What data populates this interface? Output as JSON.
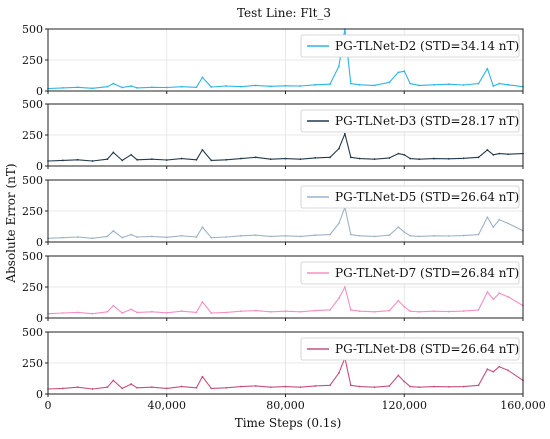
{
  "figure": {
    "title": "Test Line: Flt_3",
    "ylabel": "Absolute Error (nT)",
    "xlabel": "Time Steps (0.1s)"
  },
  "chart_data": {
    "type": "line",
    "title": "Test Line: Flt_3",
    "xlabel": "Time Steps (0.1s)",
    "ylabel": "Absolute Error (nT)",
    "xlim": [
      0,
      160000
    ],
    "ylim": [
      0,
      500
    ],
    "x_ticks": [
      0,
      40000,
      80000,
      120000,
      160000
    ],
    "x_tick_labels": [
      "0",
      "40,000",
      "80,000",
      "120,000",
      "160,000"
    ],
    "y_ticks": [
      0,
      250,
      500
    ],
    "y_tick_labels": [
      "0",
      "250",
      "500"
    ],
    "grid": true,
    "legend_position": "upper-right",
    "panels": [
      {
        "name": "PG-TLNet-D2 (STD=34.14 nT)",
        "color": "#2bb5e8",
        "x": [
          0,
          5000,
          10000,
          15000,
          20000,
          22000,
          25000,
          28000,
          30000,
          35000,
          40000,
          45000,
          50000,
          52000,
          55000,
          60000,
          65000,
          70000,
          75000,
          80000,
          85000,
          90000,
          95000,
          98000,
          100000,
          102000,
          105000,
          110000,
          115000,
          118000,
          120000,
          122000,
          125000,
          130000,
          135000,
          140000,
          145000,
          148000,
          150000,
          152000,
          155000,
          160000
        ],
        "values": [
          20,
          25,
          30,
          22,
          35,
          60,
          28,
          40,
          25,
          30,
          28,
          35,
          30,
          110,
          32,
          40,
          35,
          45,
          38,
          42,
          40,
          50,
          55,
          200,
          520,
          60,
          50,
          45,
          70,
          150,
          160,
          60,
          45,
          50,
          55,
          48,
          60,
          180,
          40,
          60,
          50,
          35
        ]
      },
      {
        "name": "PG-TLNet-D3 (STD=28.17 nT)",
        "color": "#233a4d",
        "x": [
          0,
          5000,
          10000,
          15000,
          20000,
          22000,
          25000,
          28000,
          30000,
          35000,
          40000,
          45000,
          50000,
          52000,
          55000,
          60000,
          65000,
          70000,
          75000,
          80000,
          85000,
          90000,
          95000,
          98000,
          100000,
          102000,
          105000,
          110000,
          115000,
          118000,
          120000,
          122000,
          125000,
          130000,
          135000,
          140000,
          145000,
          148000,
          150000,
          152000,
          155000,
          160000
        ],
        "values": [
          40,
          45,
          50,
          40,
          55,
          110,
          45,
          90,
          50,
          55,
          48,
          60,
          50,
          130,
          45,
          50,
          60,
          70,
          55,
          60,
          55,
          65,
          70,
          140,
          260,
          70,
          60,
          55,
          65,
          100,
          90,
          60,
          55,
          60,
          58,
          62,
          70,
          130,
          90,
          100,
          95,
          100
        ]
      },
      {
        "name": "PG-TLNet-D5 (STD=26.64 nT)",
        "color": "#9fb3c6",
        "x": [
          0,
          5000,
          10000,
          15000,
          20000,
          22000,
          25000,
          28000,
          30000,
          35000,
          40000,
          45000,
          50000,
          52000,
          55000,
          60000,
          65000,
          70000,
          75000,
          80000,
          85000,
          90000,
          95000,
          98000,
          100000,
          102000,
          105000,
          110000,
          115000,
          118000,
          120000,
          122000,
          125000,
          130000,
          135000,
          140000,
          145000,
          148000,
          150000,
          152000,
          155000,
          160000
        ],
        "values": [
          30,
          35,
          40,
          30,
          45,
          90,
          35,
          60,
          40,
          45,
          38,
          50,
          40,
          120,
          35,
          40,
          50,
          55,
          45,
          50,
          45,
          55,
          60,
          150,
          280,
          60,
          50,
          45,
          55,
          120,
          80,
          50,
          45,
          50,
          48,
          52,
          60,
          200,
          120,
          180,
          150,
          90
        ]
      },
      {
        "name": "PG-TLNet-D7 (STD=26.84 nT)",
        "color": "#f58ec2",
        "x": [
          0,
          5000,
          10000,
          15000,
          20000,
          22000,
          25000,
          28000,
          30000,
          35000,
          40000,
          45000,
          50000,
          52000,
          55000,
          60000,
          65000,
          70000,
          75000,
          80000,
          85000,
          90000,
          95000,
          98000,
          100000,
          102000,
          105000,
          110000,
          115000,
          118000,
          120000,
          122000,
          125000,
          130000,
          135000,
          140000,
          145000,
          148000,
          150000,
          152000,
          155000,
          160000
        ],
        "values": [
          35,
          40,
          45,
          35,
          50,
          100,
          40,
          70,
          45,
          50,
          42,
          55,
          45,
          130,
          40,
          45,
          55,
          60,
          50,
          55,
          50,
          60,
          65,
          160,
          250,
          65,
          55,
          50,
          60,
          140,
          90,
          55,
          50,
          55,
          52,
          56,
          65,
          210,
          150,
          200,
          170,
          100
        ]
      },
      {
        "name": "PG-TLNet-D8 (STD=26.64 nT)",
        "color": "#c4507f",
        "x": [
          0,
          5000,
          10000,
          15000,
          20000,
          22000,
          25000,
          28000,
          30000,
          35000,
          40000,
          45000,
          50000,
          52000,
          55000,
          60000,
          65000,
          70000,
          75000,
          80000,
          85000,
          90000,
          95000,
          98000,
          100000,
          102000,
          105000,
          110000,
          115000,
          118000,
          120000,
          122000,
          125000,
          130000,
          135000,
          140000,
          145000,
          148000,
          150000,
          152000,
          155000,
          160000
        ],
        "values": [
          40,
          45,
          55,
          40,
          55,
          110,
          45,
          80,
          50,
          55,
          45,
          60,
          50,
          140,
          45,
          50,
          60,
          65,
          55,
          60,
          55,
          65,
          70,
          170,
          290,
          70,
          60,
          55,
          65,
          150,
          100,
          60,
          55,
          60,
          58,
          60,
          70,
          200,
          180,
          220,
          190,
          110
        ]
      }
    ]
  }
}
